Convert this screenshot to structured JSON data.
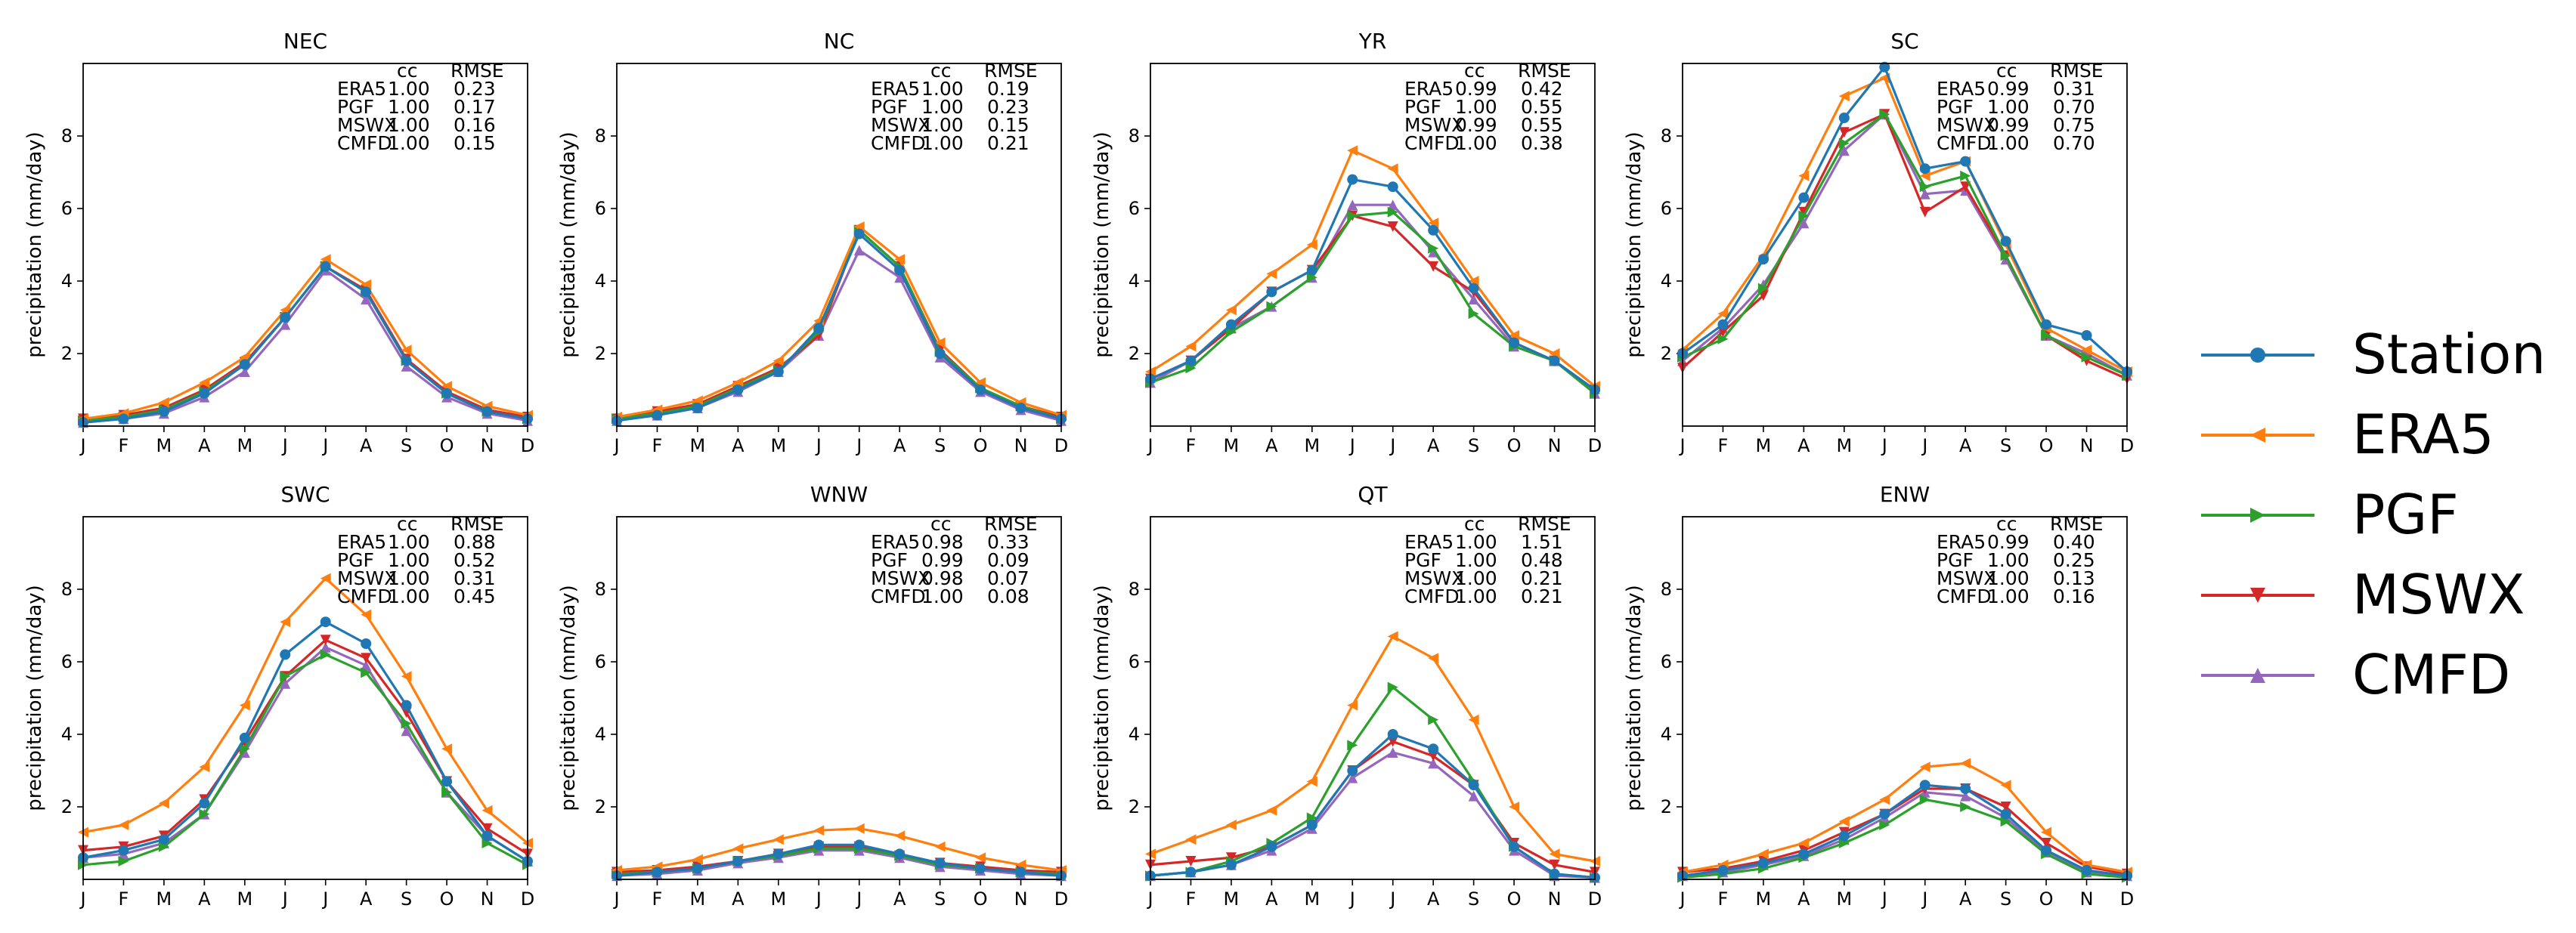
{
  "figure_description_hidden": null,
  "chart_data": [
    {
      "type": "line",
      "title": "NEC",
      "ylabel": "precipitation (mm/day)",
      "ylim": [
        0,
        10
      ],
      "yticks": [
        2,
        4,
        6,
        8
      ],
      "categories": [
        "J",
        "F",
        "M",
        "A",
        "M",
        "J",
        "J",
        "A",
        "S",
        "O",
        "N",
        "D"
      ],
      "stats_header": [
        "cc",
        "RMSE"
      ],
      "stats": [
        [
          "ERA5",
          "1.00",
          "0.23"
        ],
        [
          "PGF",
          "1.00",
          "0.17"
        ],
        [
          "MSWX",
          "1.00",
          "0.16"
        ],
        [
          "CMFD",
          "1.00",
          "0.15"
        ]
      ],
      "series": [
        {
          "name": "Station",
          "values": [
            0.1,
            0.2,
            0.4,
            0.9,
            1.7,
            3.0,
            4.4,
            3.7,
            1.8,
            0.9,
            0.4,
            0.2
          ]
        },
        {
          "name": "ERA5",
          "values": [
            0.2,
            0.35,
            0.65,
            1.2,
            1.9,
            3.2,
            4.6,
            3.9,
            2.1,
            1.1,
            0.55,
            0.3
          ]
        },
        {
          "name": "PGF",
          "values": [
            0.15,
            0.25,
            0.45,
            0.95,
            1.7,
            3.0,
            4.4,
            3.7,
            1.8,
            0.9,
            0.4,
            0.2
          ]
        },
        {
          "name": "MSWX",
          "values": [
            0.2,
            0.3,
            0.5,
            1.0,
            1.75,
            3.0,
            4.4,
            3.75,
            1.85,
            0.95,
            0.45,
            0.25
          ]
        },
        {
          "name": "CMFD",
          "values": [
            0.1,
            0.2,
            0.35,
            0.8,
            1.5,
            2.8,
            4.3,
            3.5,
            1.65,
            0.8,
            0.35,
            0.15
          ]
        }
      ]
    },
    {
      "type": "line",
      "title": "NC",
      "ylabel": "precipitation (mm/day)",
      "ylim": [
        0,
        10
      ],
      "yticks": [
        2,
        4,
        6,
        8
      ],
      "categories": [
        "J",
        "F",
        "M",
        "A",
        "M",
        "J",
        "J",
        "A",
        "S",
        "O",
        "N",
        "D"
      ],
      "stats_header": [
        "cc",
        "RMSE"
      ],
      "stats": [
        [
          "ERA5",
          "1.00",
          "0.19"
        ],
        [
          "PGF",
          "1.00",
          "0.23"
        ],
        [
          "MSWX",
          "1.00",
          "0.15"
        ],
        [
          "CMFD",
          "1.00",
          "0.21"
        ]
      ],
      "series": [
        {
          "name": "Station",
          "values": [
            0.15,
            0.3,
            0.5,
            1.0,
            1.5,
            2.7,
            5.3,
            4.3,
            2.0,
            1.0,
            0.5,
            0.2
          ]
        },
        {
          "name": "ERA5",
          "values": [
            0.25,
            0.45,
            0.7,
            1.2,
            1.8,
            2.9,
            5.5,
            4.6,
            2.3,
            1.2,
            0.65,
            0.3
          ]
        },
        {
          "name": "PGF",
          "values": [
            0.2,
            0.35,
            0.55,
            1.05,
            1.55,
            2.6,
            5.4,
            4.4,
            2.05,
            1.05,
            0.55,
            0.2
          ]
        },
        {
          "name": "MSWX",
          "values": [
            0.2,
            0.4,
            0.6,
            1.1,
            1.6,
            2.5,
            5.4,
            4.4,
            2.1,
            1.05,
            0.55,
            0.25
          ]
        },
        {
          "name": "CMFD",
          "values": [
            0.15,
            0.3,
            0.5,
            0.95,
            1.5,
            2.5,
            4.85,
            4.1,
            1.9,
            0.95,
            0.45,
            0.15
          ]
        }
      ]
    },
    {
      "type": "line",
      "title": "YR",
      "ylabel": "precipitation (mm/day)",
      "ylim": [
        0,
        10
      ],
      "yticks": [
        2,
        4,
        6,
        8
      ],
      "categories": [
        "J",
        "F",
        "M",
        "A",
        "M",
        "J",
        "J",
        "A",
        "S",
        "O",
        "N",
        "D"
      ],
      "stats_header": [
        "cc",
        "RMSE"
      ],
      "stats": [
        [
          "ERA5",
          "0.99",
          "0.42"
        ],
        [
          "PGF",
          "1.00",
          "0.55"
        ],
        [
          "MSWX",
          "0.99",
          "0.55"
        ],
        [
          "CMFD",
          "1.00",
          "0.38"
        ]
      ],
      "series": [
        {
          "name": "Station",
          "values": [
            1.3,
            1.8,
            2.8,
            3.7,
            4.3,
            6.8,
            6.6,
            5.4,
            3.8,
            2.3,
            1.8,
            1.0
          ]
        },
        {
          "name": "ERA5",
          "values": [
            1.5,
            2.2,
            3.2,
            4.2,
            5.0,
            7.6,
            7.1,
            5.6,
            4.0,
            2.5,
            2.0,
            1.1
          ]
        },
        {
          "name": "PGF",
          "values": [
            1.2,
            1.6,
            2.6,
            3.3,
            4.1,
            5.8,
            5.9,
            4.9,
            3.1,
            2.2,
            1.8,
            0.9
          ]
        },
        {
          "name": "MSWX",
          "values": [
            1.3,
            1.8,
            2.7,
            3.7,
            4.3,
            5.8,
            5.5,
            4.4,
            3.7,
            2.3,
            1.8,
            1.0
          ]
        },
        {
          "name": "CMFD",
          "values": [
            1.2,
            1.8,
            2.7,
            3.3,
            4.1,
            6.1,
            6.1,
            4.8,
            3.5,
            2.2,
            1.8,
            0.9
          ]
        }
      ]
    },
    {
      "type": "line",
      "title": "SC",
      "ylabel": "precipitation (mm/day)",
      "ylim": [
        0,
        10
      ],
      "yticks": [
        2,
        4,
        6,
        8
      ],
      "categories": [
        "J",
        "F",
        "M",
        "A",
        "M",
        "J",
        "J",
        "A",
        "S",
        "O",
        "N",
        "D"
      ],
      "stats_header": [
        "cc",
        "RMSE"
      ],
      "stats": [
        [
          "ERA5",
          "0.99",
          "0.31"
        ],
        [
          "PGF",
          "1.00",
          "0.70"
        ],
        [
          "MSWX",
          "0.99",
          "0.75"
        ],
        [
          "CMFD",
          "1.00",
          "0.70"
        ]
      ],
      "series": [
        {
          "name": "Station",
          "values": [
            2.0,
            2.8,
            4.6,
            6.3,
            8.5,
            9.9,
            7.1,
            7.3,
            5.1,
            2.8,
            2.5,
            1.5
          ]
        },
        {
          "name": "ERA5",
          "values": [
            2.1,
            3.1,
            4.7,
            6.9,
            9.1,
            9.6,
            6.9,
            7.3,
            5.0,
            2.7,
            2.1,
            1.5
          ]
        },
        {
          "name": "PGF",
          "values": [
            1.9,
            2.4,
            3.8,
            5.8,
            7.8,
            8.6,
            6.6,
            6.9,
            4.7,
            2.5,
            1.9,
            1.4
          ]
        },
        {
          "name": "MSWX",
          "values": [
            1.6,
            2.6,
            3.6,
            5.9,
            8.1,
            8.6,
            5.9,
            6.6,
            4.7,
            2.5,
            1.8,
            1.3
          ]
        },
        {
          "name": "CMFD",
          "values": [
            1.8,
            2.7,
            3.9,
            5.6,
            7.6,
            8.6,
            6.4,
            6.5,
            4.6,
            2.5,
            2.0,
            1.4
          ]
        }
      ]
    },
    {
      "type": "line",
      "title": "SWC",
      "ylabel": "precipitation (mm/day)",
      "ylim": [
        0,
        10
      ],
      "yticks": [
        2,
        4,
        6,
        8
      ],
      "categories": [
        "J",
        "F",
        "M",
        "A",
        "M",
        "J",
        "J",
        "A",
        "S",
        "O",
        "N",
        "D"
      ],
      "stats_header": [
        "cc",
        "RMSE"
      ],
      "stats": [
        [
          "ERA5",
          "1.00",
          "0.88"
        ],
        [
          "PGF",
          "1.00",
          "0.52"
        ],
        [
          "MSWX",
          "1.00",
          "0.31"
        ],
        [
          "CMFD",
          "1.00",
          "0.45"
        ]
      ],
      "series": [
        {
          "name": "Station",
          "values": [
            0.6,
            0.8,
            1.1,
            2.1,
            3.9,
            6.2,
            7.1,
            6.5,
            4.8,
            2.7,
            1.2,
            0.5
          ]
        },
        {
          "name": "ERA5",
          "values": [
            1.3,
            1.5,
            2.1,
            3.1,
            4.8,
            7.1,
            8.3,
            7.3,
            5.6,
            3.6,
            1.9,
            1.0
          ]
        },
        {
          "name": "PGF",
          "values": [
            0.4,
            0.5,
            0.9,
            1.8,
            3.6,
            5.6,
            6.2,
            5.7,
            4.3,
            2.4,
            1.0,
            0.4
          ]
        },
        {
          "name": "MSWX",
          "values": [
            0.8,
            0.9,
            1.2,
            2.2,
            3.8,
            5.6,
            6.6,
            6.1,
            4.6,
            2.7,
            1.4,
            0.7
          ]
        },
        {
          "name": "CMFD",
          "values": [
            0.6,
            0.7,
            1.0,
            1.8,
            3.5,
            5.4,
            6.4,
            5.9,
            4.1,
            2.4,
            1.2,
            0.5
          ]
        }
      ]
    },
    {
      "type": "line",
      "title": "WNW",
      "ylabel": "precipitation (mm/day)",
      "ylim": [
        0,
        10
      ],
      "yticks": [
        2,
        4,
        6,
        8
      ],
      "categories": [
        "J",
        "F",
        "M",
        "A",
        "M",
        "J",
        "J",
        "A",
        "S",
        "O",
        "N",
        "D"
      ],
      "stats_header": [
        "cc",
        "RMSE"
      ],
      "stats": [
        [
          "ERA5",
          "0.98",
          "0.33"
        ],
        [
          "PGF",
          "0.99",
          "0.09"
        ],
        [
          "MSWX",
          "0.98",
          "0.07"
        ],
        [
          "CMFD",
          "1.00",
          "0.08"
        ]
      ],
      "series": [
        {
          "name": "Station",
          "values": [
            0.1,
            0.2,
            0.3,
            0.5,
            0.7,
            0.95,
            0.95,
            0.7,
            0.45,
            0.3,
            0.2,
            0.1
          ]
        },
        {
          "name": "ERA5",
          "values": [
            0.25,
            0.35,
            0.55,
            0.85,
            1.1,
            1.35,
            1.4,
            1.2,
            0.9,
            0.6,
            0.4,
            0.25
          ]
        },
        {
          "name": "PGF",
          "values": [
            0.15,
            0.2,
            0.3,
            0.5,
            0.65,
            0.85,
            0.85,
            0.65,
            0.4,
            0.3,
            0.2,
            0.15
          ]
        },
        {
          "name": "MSWX",
          "values": [
            0.2,
            0.25,
            0.35,
            0.5,
            0.7,
            0.9,
            0.9,
            0.65,
            0.45,
            0.35,
            0.25,
            0.2
          ]
        },
        {
          "name": "CMFD",
          "values": [
            0.1,
            0.15,
            0.25,
            0.45,
            0.6,
            0.8,
            0.8,
            0.6,
            0.35,
            0.25,
            0.15,
            0.1
          ]
        }
      ]
    },
    {
      "type": "line",
      "title": "QT",
      "ylabel": "precipitation (mm/day)",
      "ylim": [
        0,
        10
      ],
      "yticks": [
        2,
        4,
        6,
        8
      ],
      "categories": [
        "J",
        "F",
        "M",
        "A",
        "M",
        "J",
        "J",
        "A",
        "S",
        "O",
        "N",
        "D"
      ],
      "stats_header": [
        "cc",
        "RMSE"
      ],
      "stats": [
        [
          "ERA5",
          "1.00",
          "1.51"
        ],
        [
          "PGF",
          "1.00",
          "0.48"
        ],
        [
          "MSWX",
          "1.00",
          "0.21"
        ],
        [
          "CMFD",
          "1.00",
          "0.21"
        ]
      ],
      "series": [
        {
          "name": "Station",
          "values": [
            0.1,
            0.2,
            0.4,
            0.9,
            1.5,
            3.0,
            4.0,
            3.6,
            2.6,
            0.9,
            0.15,
            0.05
          ]
        },
        {
          "name": "ERA5",
          "values": [
            0.7,
            1.1,
            1.5,
            1.9,
            2.7,
            4.8,
            6.7,
            6.1,
            4.4,
            2.0,
            0.7,
            0.5
          ]
        },
        {
          "name": "PGF",
          "values": [
            0.1,
            0.2,
            0.5,
            1.0,
            1.7,
            3.7,
            5.3,
            4.4,
            2.7,
            0.9,
            0.15,
            0.05
          ]
        },
        {
          "name": "MSWX",
          "values": [
            0.4,
            0.5,
            0.6,
            0.9,
            1.5,
            3.0,
            3.8,
            3.4,
            2.6,
            1.0,
            0.4,
            0.2
          ]
        },
        {
          "name": "CMFD",
          "values": [
            0.1,
            0.2,
            0.4,
            0.8,
            1.4,
            2.8,
            3.5,
            3.2,
            2.3,
            0.8,
            0.1,
            0.05
          ]
        }
      ]
    },
    {
      "type": "line",
      "title": "ENW",
      "ylabel": "precipitation (mm/day)",
      "ylim": [
        0,
        10
      ],
      "yticks": [
        2,
        4,
        6,
        8
      ],
      "categories": [
        "J",
        "F",
        "M",
        "A",
        "M",
        "J",
        "J",
        "A",
        "S",
        "O",
        "N",
        "D"
      ],
      "stats_header": [
        "cc",
        "RMSE"
      ],
      "stats": [
        [
          "ERA5",
          "0.99",
          "0.40"
        ],
        [
          "PGF",
          "1.00",
          "0.25"
        ],
        [
          "MSWX",
          "1.00",
          "0.13"
        ],
        [
          "CMFD",
          "1.00",
          "0.16"
        ]
      ],
      "series": [
        {
          "name": "Station",
          "values": [
            0.1,
            0.25,
            0.45,
            0.7,
            1.2,
            1.8,
            2.6,
            2.5,
            1.8,
            0.8,
            0.25,
            0.1
          ]
        },
        {
          "name": "ERA5",
          "values": [
            0.2,
            0.4,
            0.7,
            1.0,
            1.6,
            2.2,
            3.1,
            3.2,
            2.6,
            1.3,
            0.4,
            0.2
          ]
        },
        {
          "name": "PGF",
          "values": [
            0.05,
            0.15,
            0.3,
            0.6,
            1.0,
            1.5,
            2.2,
            2.0,
            1.6,
            0.7,
            0.15,
            0.05
          ]
        },
        {
          "name": "MSWX",
          "values": [
            0.2,
            0.3,
            0.5,
            0.8,
            1.3,
            1.8,
            2.5,
            2.5,
            2.0,
            1.0,
            0.35,
            0.15
          ]
        },
        {
          "name": "CMFD",
          "values": [
            0.1,
            0.2,
            0.4,
            0.65,
            1.1,
            1.7,
            2.4,
            2.3,
            1.7,
            0.75,
            0.2,
            0.1
          ]
        }
      ]
    }
  ],
  "legend": {
    "position": "right",
    "entries": [
      {
        "name": "Station",
        "color": "#1f77b4",
        "marker": "circle"
      },
      {
        "name": "ERA5",
        "color": "#ff7f0e",
        "marker": "triangle-left"
      },
      {
        "name": "PGF",
        "color": "#2ca02c",
        "marker": "triangle-right"
      },
      {
        "name": "MSWX",
        "color": "#d62728",
        "marker": "triangle-down"
      },
      {
        "name": "CMFD",
        "color": "#9467bd",
        "marker": "triangle-up"
      }
    ]
  }
}
